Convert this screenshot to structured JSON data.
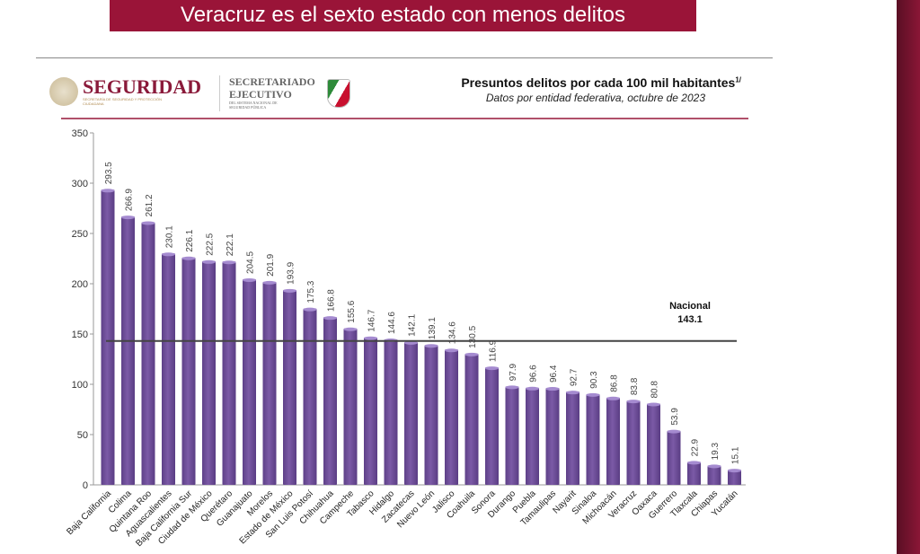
{
  "banner": {
    "text": "Veracruz es el sexto estado con menos delitos"
  },
  "header": {
    "logo_main": "SEGURIDAD",
    "logo_sub": "SECRETARÍA DE SEGURIDAD Y PROTECCIÓN CIUDADANA",
    "secretariado_line1": "SECRETARIADO",
    "secretariado_line2": "EJECUTIVO",
    "secretariado_sub": "DEL SISTEMA NACIONAL DE SEGURIDAD PÚBLICA"
  },
  "colors": {
    "bar": "#7b5aa6",
    "banner": "#9a1438",
    "accent_line": "#b0506a"
  },
  "chart_data": {
    "type": "bar",
    "title": "Presuntos delitos por cada 100 mil habitantes",
    "title_superscript": "1/",
    "subtitle": "Datos por entidad federativa, octubre de 2023",
    "xlabel": "",
    "ylabel": "",
    "ylim": [
      0,
      350
    ],
    "yticks": [
      0,
      50,
      100,
      150,
      200,
      250,
      300,
      350
    ],
    "grid": false,
    "categories": [
      "Baja California",
      "Colima",
      "Quintana Roo",
      "Aguascalientes",
      "Baja California Sur",
      "Ciudad de México",
      "Querétaro",
      "Guanajuato",
      "Morelos",
      "Estado de México",
      "San Luis Potosí",
      "Chihuahua",
      "Campeche",
      "Tabasco",
      "Hidalgo",
      "Zacatecas",
      "Nuevo León",
      "Jalisco",
      "Coahuila",
      "Sonora",
      "Durango",
      "Puebla",
      "Tamaulipas",
      "Nayarit",
      "Sinaloa",
      "Michoacán",
      "Veracruz",
      "Oaxaca",
      "Guerrero",
      "Tlaxcala",
      "Chiapas",
      "Yucatán"
    ],
    "values": [
      293.5,
      266.9,
      261.2,
      230.1,
      226.1,
      222.5,
      222.1,
      204.5,
      201.9,
      193.9,
      175.3,
      166.8,
      155.6,
      146.7,
      144.6,
      142.1,
      139.1,
      134.6,
      130.5,
      116.9,
      97.9,
      96.6,
      96.4,
      92.7,
      90.3,
      86.8,
      83.8,
      80.8,
      53.9,
      22.9,
      19.3,
      15.1
    ],
    "reference_line": {
      "label": "Nacional",
      "value": 143.1,
      "value_label": "143.1"
    }
  }
}
